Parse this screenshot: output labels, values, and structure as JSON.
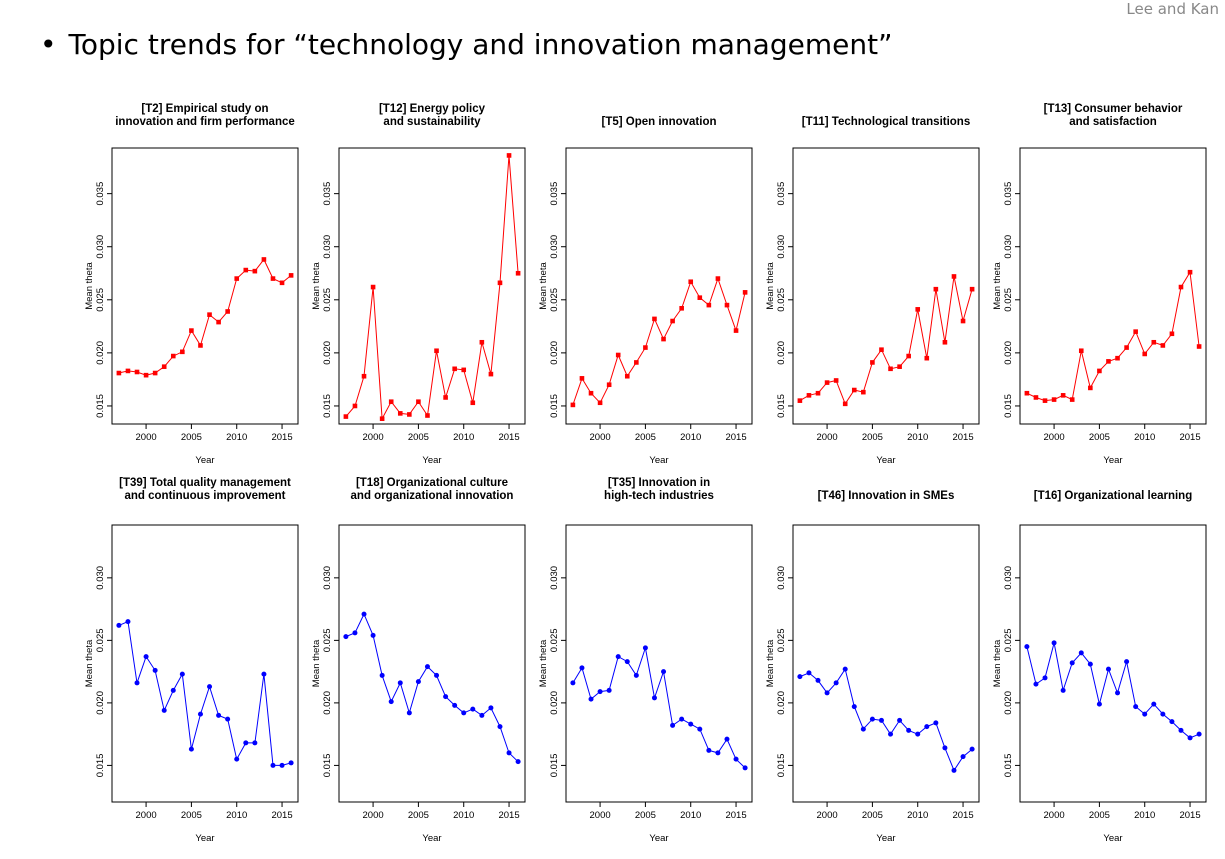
{
  "header": {
    "author": "Lee and Kan",
    "bullet": "•",
    "title": "Topic trends for “technology and innovation management”"
  },
  "colors": {
    "rising": "#ff0000",
    "falling": "#0000ff"
  },
  "chart_data": [
    {
      "type": "line",
      "title_lines": [
        "[T2] Empirical study on",
        "innovation and firm performance"
      ],
      "xlabel": "Year",
      "ylabel": "Mean theta",
      "xlim": [
        1997,
        2016
      ],
      "ylim": [
        0.0138,
        0.0388
      ],
      "yticks": [
        "0.015",
        "0.020",
        "0.025",
        "0.030",
        "0.035"
      ],
      "xticks": [
        "2000",
        "2005",
        "2010",
        "2015"
      ],
      "color": "#ff0000",
      "marker": "square",
      "x": [
        1997,
        1998,
        1999,
        2000,
        2001,
        2002,
        2003,
        2004,
        2005,
        2006,
        2007,
        2008,
        2009,
        2010,
        2011,
        2012,
        2013,
        2014,
        2015,
        2016
      ],
      "values": [
        0.0181,
        0.0183,
        0.0182,
        0.0179,
        0.0181,
        0.0187,
        0.0197,
        0.0201,
        0.0221,
        0.0207,
        0.0236,
        0.0229,
        0.0239,
        0.027,
        0.0278,
        0.0277,
        0.0288,
        0.027,
        0.0266,
        0.0273
      ]
    },
    {
      "type": "line",
      "title_lines": [
        "[T12] Energy policy",
        "and sustainability"
      ],
      "xlabel": "Year",
      "ylabel": "Mean theta",
      "xlim": [
        1997,
        2016
      ],
      "ylim": [
        0.0138,
        0.0388
      ],
      "yticks": [
        "0.015",
        "0.020",
        "0.025",
        "0.030",
        "0.035"
      ],
      "xticks": [
        "2000",
        "2005",
        "2010",
        "2015"
      ],
      "color": "#ff0000",
      "marker": "square",
      "x": [
        1997,
        1998,
        1999,
        2000,
        2001,
        2002,
        2003,
        2004,
        2005,
        2006,
        2007,
        2008,
        2009,
        2010,
        2011,
        2012,
        2013,
        2014,
        2015,
        2016
      ],
      "values": [
        0.014,
        0.015,
        0.0178,
        0.0262,
        0.0138,
        0.0154,
        0.0143,
        0.0142,
        0.0154,
        0.0141,
        0.0202,
        0.0158,
        0.0185,
        0.0184,
        0.0153,
        0.021,
        0.018,
        0.0266,
        0.0386,
        0.0275
      ]
    },
    {
      "type": "line",
      "title_lines": [
        "[T5] Open innovation"
      ],
      "xlabel": "Year",
      "ylabel": "Mean theta",
      "xlim": [
        1997,
        2016
      ],
      "ylim": [
        0.0138,
        0.0388
      ],
      "yticks": [
        "0.015",
        "0.020",
        "0.025",
        "0.030",
        "0.035"
      ],
      "xticks": [
        "2000",
        "2005",
        "2010",
        "2015"
      ],
      "color": "#ff0000",
      "marker": "square",
      "x": [
        1997,
        1998,
        1999,
        2000,
        2001,
        2002,
        2003,
        2004,
        2005,
        2006,
        2007,
        2008,
        2009,
        2010,
        2011,
        2012,
        2013,
        2014,
        2015,
        2016
      ],
      "values": [
        0.0151,
        0.0176,
        0.0162,
        0.0153,
        0.017,
        0.0198,
        0.0178,
        0.0191,
        0.0205,
        0.0232,
        0.0213,
        0.023,
        0.0242,
        0.0267,
        0.0252,
        0.0245,
        0.027,
        0.0245,
        0.0221,
        0.0257
      ]
    },
    {
      "type": "line",
      "title_lines": [
        "[T11] Technological transitions"
      ],
      "xlabel": "Year",
      "ylabel": "Mean theta",
      "xlim": [
        1997,
        2016
      ],
      "ylim": [
        0.0138,
        0.0388
      ],
      "yticks": [
        "0.015",
        "0.020",
        "0.025",
        "0.030",
        "0.035"
      ],
      "xticks": [
        "2000",
        "2005",
        "2010",
        "2015"
      ],
      "color": "#ff0000",
      "marker": "square",
      "x": [
        1997,
        1998,
        1999,
        2000,
        2001,
        2002,
        2003,
        2004,
        2005,
        2006,
        2007,
        2008,
        2009,
        2010,
        2011,
        2012,
        2013,
        2014,
        2015,
        2016
      ],
      "values": [
        0.0155,
        0.016,
        0.0162,
        0.0172,
        0.0174,
        0.0152,
        0.0165,
        0.0163,
        0.0191,
        0.0203,
        0.0185,
        0.0187,
        0.0197,
        0.0241,
        0.0195,
        0.026,
        0.021,
        0.0272,
        0.023,
        0.026
      ]
    },
    {
      "type": "line",
      "title_lines": [
        "[T13] Consumer behavior",
        "and satisfaction"
      ],
      "xlabel": "Year",
      "ylabel": "Mean theta",
      "xlim": [
        1997,
        2016
      ],
      "ylim": [
        0.0138,
        0.0388
      ],
      "yticks": [
        "0.015",
        "0.020",
        "0.025",
        "0.030",
        "0.035"
      ],
      "xticks": [
        "2000",
        "2005",
        "2010",
        "2015"
      ],
      "color": "#ff0000",
      "marker": "square",
      "x": [
        1997,
        1998,
        1999,
        2000,
        2001,
        2002,
        2003,
        2004,
        2005,
        2006,
        2007,
        2008,
        2009,
        2010,
        2011,
        2012,
        2013,
        2014,
        2015,
        2016
      ],
      "values": [
        0.0162,
        0.0158,
        0.0155,
        0.0156,
        0.016,
        0.0156,
        0.0202,
        0.0167,
        0.0183,
        0.0192,
        0.0195,
        0.0205,
        0.022,
        0.0199,
        0.021,
        0.0207,
        0.0218,
        0.0262,
        0.0276,
        0.0206
      ]
    },
    {
      "type": "line",
      "title_lines": [
        "[T39] Total quality management",
        "and continuous improvement"
      ],
      "xlabel": "Year",
      "ylabel": "Mean theta",
      "xlim": [
        1997,
        2016
      ],
      "ylim": [
        0.0125,
        0.0338
      ],
      "yticks": [
        "0.015",
        "0.020",
        "0.025",
        "0.030"
      ],
      "xticks": [
        "2000",
        "2005",
        "2010",
        "2015"
      ],
      "color": "#0000ff",
      "marker": "circle",
      "x": [
        1997,
        1998,
        1999,
        2000,
        2001,
        2002,
        2003,
        2004,
        2005,
        2006,
        2007,
        2008,
        2009,
        2010,
        2011,
        2012,
        2013,
        2014,
        2015,
        2016
      ],
      "values": [
        0.0262,
        0.0265,
        0.0216,
        0.0237,
        0.0226,
        0.0194,
        0.021,
        0.0223,
        0.0163,
        0.0191,
        0.0213,
        0.019,
        0.0187,
        0.0155,
        0.0168,
        0.0168,
        0.0223,
        0.015,
        0.015,
        0.0152
      ]
    },
    {
      "type": "line",
      "title_lines": [
        "[T18] Organizational culture",
        "and organizational innovation"
      ],
      "xlabel": "Year",
      "ylabel": "Mean theta",
      "xlim": [
        1997,
        2016
      ],
      "ylim": [
        0.0125,
        0.0338
      ],
      "yticks": [
        "0.015",
        "0.020",
        "0.025",
        "0.030"
      ],
      "xticks": [
        "2000",
        "2005",
        "2010",
        "2015"
      ],
      "color": "#0000ff",
      "marker": "circle",
      "x": [
        1997,
        1998,
        1999,
        2000,
        2001,
        2002,
        2003,
        2004,
        2005,
        2006,
        2007,
        2008,
        2009,
        2010,
        2011,
        2012,
        2013,
        2014,
        2015,
        2016
      ],
      "values": [
        0.0253,
        0.0256,
        0.0271,
        0.0254,
        0.0222,
        0.0201,
        0.0216,
        0.0192,
        0.0217,
        0.0229,
        0.0222,
        0.0205,
        0.0198,
        0.0192,
        0.0195,
        0.019,
        0.0196,
        0.0181,
        0.016,
        0.0153
      ]
    },
    {
      "type": "line",
      "title_lines": [
        "[T35] Innovation in",
        "high-tech industries"
      ],
      "xlabel": "Year",
      "ylabel": "Mean theta",
      "xlim": [
        1997,
        2016
      ],
      "ylim": [
        0.0125,
        0.0338
      ],
      "yticks": [
        "0.015",
        "0.020",
        "0.025",
        "0.030"
      ],
      "xticks": [
        "2000",
        "2005",
        "2010",
        "2015"
      ],
      "color": "#0000ff",
      "marker": "circle",
      "x": [
        1997,
        1998,
        1999,
        2000,
        2001,
        2002,
        2003,
        2004,
        2005,
        2006,
        2007,
        2008,
        2009,
        2010,
        2011,
        2012,
        2013,
        2014,
        2015,
        2016
      ],
      "values": [
        0.0216,
        0.0228,
        0.0203,
        0.0209,
        0.021,
        0.0237,
        0.0233,
        0.0222,
        0.0244,
        0.0204,
        0.0225,
        0.0182,
        0.0187,
        0.0183,
        0.0179,
        0.0162,
        0.016,
        0.0171,
        0.0155,
        0.0148
      ]
    },
    {
      "type": "line",
      "title_lines": [
        "[T46] Innovation in SMEs"
      ],
      "xlabel": "Year",
      "ylabel": "Mean theta",
      "xlim": [
        1997,
        2016
      ],
      "ylim": [
        0.0125,
        0.0338
      ],
      "yticks": [
        "0.015",
        "0.020",
        "0.025",
        "0.030"
      ],
      "xticks": [
        "2000",
        "2005",
        "2010",
        "2015"
      ],
      "color": "#0000ff",
      "marker": "circle",
      "x": [
        1997,
        1998,
        1999,
        2000,
        2001,
        2002,
        2003,
        2004,
        2005,
        2006,
        2007,
        2008,
        2009,
        2010,
        2011,
        2012,
        2013,
        2014,
        2015,
        2016
      ],
      "values": [
        0.0221,
        0.0224,
        0.0218,
        0.0208,
        0.0216,
        0.0227,
        0.0197,
        0.0179,
        0.0187,
        0.0186,
        0.0175,
        0.0186,
        0.0178,
        0.0175,
        0.0181,
        0.0184,
        0.0164,
        0.0146,
        0.0157,
        0.0163
      ]
    },
    {
      "type": "line",
      "title_lines": [
        "[T16] Organizational learning"
      ],
      "xlabel": "Year",
      "ylabel": "Mean theta",
      "xlim": [
        1997,
        2016
      ],
      "ylim": [
        0.0125,
        0.0338
      ],
      "yticks": [
        "0.015",
        "0.020",
        "0.025",
        "0.030"
      ],
      "xticks": [
        "2000",
        "2005",
        "2010",
        "2015"
      ],
      "color": "#0000ff",
      "marker": "circle",
      "x": [
        1997,
        1998,
        1999,
        2000,
        2001,
        2002,
        2003,
        2004,
        2005,
        2006,
        2007,
        2008,
        2009,
        2010,
        2011,
        2012,
        2013,
        2014,
        2015,
        2016
      ],
      "values": [
        0.0245,
        0.0215,
        0.022,
        0.0248,
        0.021,
        0.0232,
        0.024,
        0.0231,
        0.0199,
        0.0227,
        0.0208,
        0.0233,
        0.0197,
        0.0191,
        0.0199,
        0.0191,
        0.0185,
        0.0178,
        0.0172,
        0.0175
      ]
    }
  ]
}
